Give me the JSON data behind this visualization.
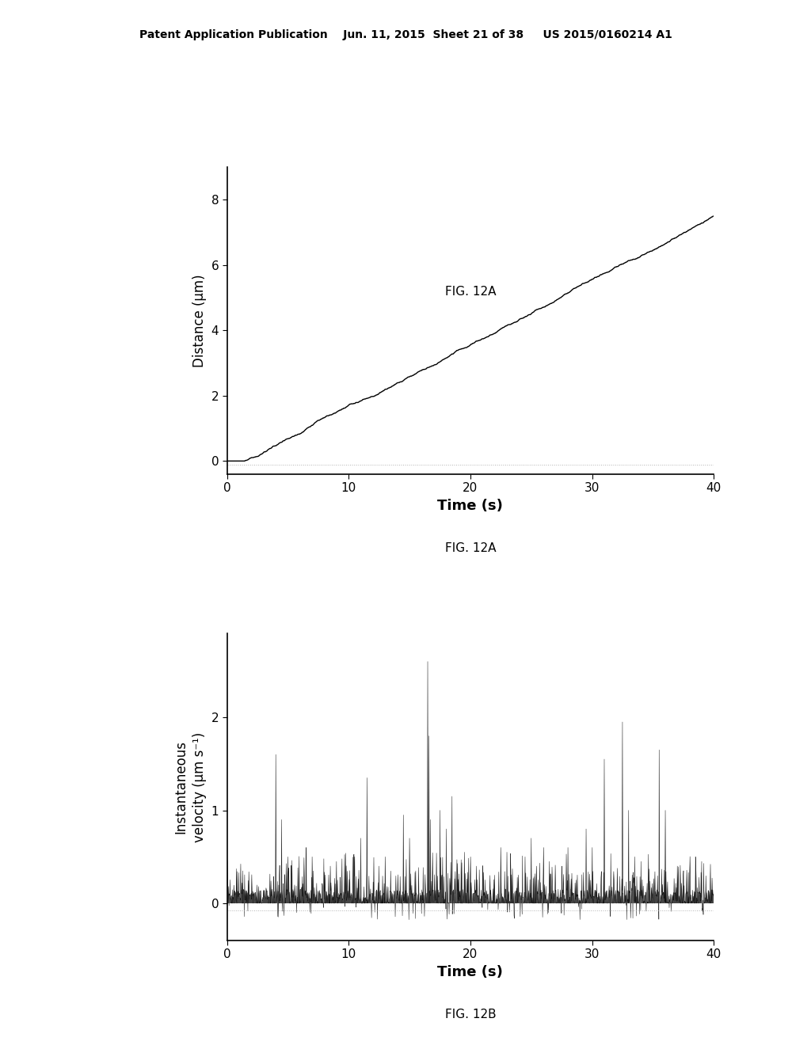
{
  "fig_width": 10.24,
  "fig_height": 13.2,
  "bg_color": "#ffffff",
  "header_text": "Patent Application Publication    Jun. 11, 2015  Sheet 21 of 38     US 2015/0160214 A1",
  "header_fontsize": 10,
  "top_panel": {
    "ylabel": "Distance (μm)",
    "xlabel": "Time (s)",
    "caption": "FIG. 12A",
    "xlim": [
      0,
      40
    ],
    "ylim": [
      -0.4,
      9
    ],
    "yticks": [
      0,
      2,
      4,
      6,
      8
    ],
    "xticks": [
      0,
      10,
      20,
      30,
      40
    ],
    "line_color": "#000000",
    "linewidth": 1.0
  },
  "bottom_panel": {
    "ylabel": "Instantaneous\nvelocity (μm s⁻¹)",
    "xlabel": "Time (s)",
    "caption": "FIG. 12B",
    "xlim": [
      0,
      40
    ],
    "ylim": [
      -0.4,
      2.9
    ],
    "yticks": [
      0,
      1,
      2
    ],
    "xticks": [
      0,
      10,
      20,
      30,
      40
    ],
    "line_color": "#000000",
    "fill_color": "#555555",
    "linewidth": 0.5
  }
}
